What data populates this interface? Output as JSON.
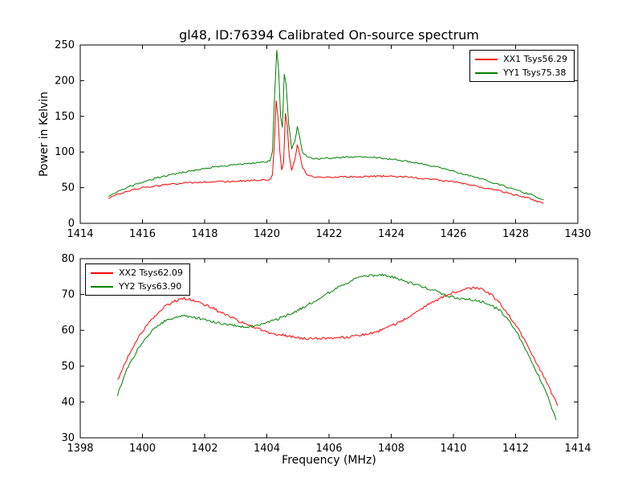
{
  "figure": {
    "title": "gl48, ID:76394 Calibrated On-source spectrum",
    "background": "#ffffff"
  },
  "chart_data": [
    {
      "type": "line",
      "title": "gl48, ID:76394 Calibrated On-source spectrum",
      "xlabel": "",
      "ylabel": "Power in Kelvin",
      "xlim": [
        1414,
        1430
      ],
      "ylim": [
        0,
        250
      ],
      "xticks": [
        1414,
        1416,
        1418,
        1420,
        1422,
        1424,
        1426,
        1428,
        1430
      ],
      "yticks": [
        0,
        50,
        100,
        150,
        200,
        250
      ],
      "grid": false,
      "legend_position": "top-right",
      "sample_step": 0.05,
      "series": [
        {
          "name": "XX1 Tsys56.29",
          "color": "#ff0000",
          "noise": 1.2,
          "points": [
            [
              1414.9,
              35
            ],
            [
              1415.2,
              41
            ],
            [
              1415.6,
              46
            ],
            [
              1416.0,
              50
            ],
            [
              1416.5,
              53
            ],
            [
              1417.0,
              55
            ],
            [
              1417.5,
              57
            ],
            [
              1418.0,
              58
            ],
            [
              1418.5,
              58.5
            ],
            [
              1419.0,
              59
            ],
            [
              1419.5,
              60
            ],
            [
              1420.0,
              61
            ],
            [
              1420.1,
              62
            ],
            [
              1420.18,
              68
            ],
            [
              1420.24,
              110
            ],
            [
              1420.3,
              173
            ],
            [
              1420.36,
              150
            ],
            [
              1420.42,
              100
            ],
            [
              1420.48,
              76
            ],
            [
              1420.54,
              85
            ],
            [
              1420.6,
              155
            ],
            [
              1420.66,
              135
            ],
            [
              1420.72,
              95
            ],
            [
              1420.8,
              75
            ],
            [
              1420.9,
              88
            ],
            [
              1420.98,
              110
            ],
            [
              1421.05,
              100
            ],
            [
              1421.15,
              78
            ],
            [
              1421.3,
              68
            ],
            [
              1421.5,
              65
            ],
            [
              1422.0,
              64.5
            ],
            [
              1422.5,
              65
            ],
            [
              1423.0,
              65.5
            ],
            [
              1423.5,
              66
            ],
            [
              1424.0,
              66
            ],
            [
              1424.5,
              65
            ],
            [
              1425.0,
              63
            ],
            [
              1425.5,
              61
            ],
            [
              1426.0,
              58
            ],
            [
              1426.5,
              54
            ],
            [
              1427.0,
              50
            ],
            [
              1427.5,
              45
            ],
            [
              1428.0,
              40
            ],
            [
              1428.5,
              34
            ],
            [
              1428.9,
              28
            ]
          ]
        },
        {
          "name": "YY1 Tsys75.38",
          "color": "#008000",
          "noise": 1.2,
          "points": [
            [
              1414.9,
              37
            ],
            [
              1415.2,
              44
            ],
            [
              1415.6,
              52
            ],
            [
              1416.0,
              58
            ],
            [
              1416.5,
              64
            ],
            [
              1417.0,
              69
            ],
            [
              1417.5,
              73
            ],
            [
              1418.0,
              77
            ],
            [
              1418.5,
              80
            ],
            [
              1419.0,
              82
            ],
            [
              1419.5,
              84
            ],
            [
              1420.0,
              86
            ],
            [
              1420.1,
              88
            ],
            [
              1420.18,
              100
            ],
            [
              1420.24,
              170
            ],
            [
              1420.32,
              243
            ],
            [
              1420.38,
              215
            ],
            [
              1420.44,
              150
            ],
            [
              1420.5,
              135
            ],
            [
              1420.56,
              210
            ],
            [
              1420.62,
              195
            ],
            [
              1420.7,
              140
            ],
            [
              1420.8,
              105
            ],
            [
              1420.9,
              115
            ],
            [
              1420.98,
              135
            ],
            [
              1421.05,
              122
            ],
            [
              1421.15,
              100
            ],
            [
              1421.3,
              93
            ],
            [
              1421.5,
              90
            ],
            [
              1422.0,
              91
            ],
            [
              1422.5,
              93
            ],
            [
              1423.0,
              93
            ],
            [
              1423.5,
              92
            ],
            [
              1424.0,
              90
            ],
            [
              1424.5,
              87
            ],
            [
              1425.0,
              83
            ],
            [
              1425.5,
              79
            ],
            [
              1426.0,
              73
            ],
            [
              1426.5,
              67
            ],
            [
              1427.0,
              61
            ],
            [
              1427.5,
              54
            ],
            [
              1428.0,
              47
            ],
            [
              1428.5,
              40
            ],
            [
              1428.9,
              33
            ]
          ]
        }
      ]
    },
    {
      "type": "line",
      "title": "",
      "xlabel": "Frequency (MHz)",
      "ylabel": "",
      "xlim": [
        1398,
        1414
      ],
      "ylim": [
        30,
        80
      ],
      "xticks": [
        1398,
        1400,
        1402,
        1404,
        1406,
        1408,
        1410,
        1412,
        1414
      ],
      "yticks": [
        30,
        40,
        50,
        60,
        70,
        80
      ],
      "grid": false,
      "legend_position": "top-left",
      "sample_step": 0.04,
      "series": [
        {
          "name": "XX2 Tsys62.09",
          "color": "#ff0000",
          "noise": 0.35,
          "points": [
            [
              1399.2,
              46
            ],
            [
              1399.5,
              52
            ],
            [
              1399.8,
              57
            ],
            [
              1400.1,
              61
            ],
            [
              1400.4,
              64
            ],
            [
              1400.7,
              66.5
            ],
            [
              1401.0,
              68
            ],
            [
              1401.3,
              69
            ],
            [
              1401.6,
              68.5
            ],
            [
              1401.9,
              67.5
            ],
            [
              1402.2,
              66.5
            ],
            [
              1402.5,
              65
            ],
            [
              1402.8,
              64
            ],
            [
              1403.1,
              62.5
            ],
            [
              1403.4,
              61.5
            ],
            [
              1403.7,
              60.5
            ],
            [
              1404.0,
              59.5
            ],
            [
              1404.3,
              59
            ],
            [
              1404.6,
              58.5
            ],
            [
              1404.9,
              58
            ],
            [
              1405.2,
              57.8
            ],
            [
              1405.5,
              57.7
            ],
            [
              1405.8,
              57.7
            ],
            [
              1406.1,
              57.8
            ],
            [
              1406.4,
              58
            ],
            [
              1406.7,
              58.2
            ],
            [
              1407.0,
              58.6
            ],
            [
              1407.3,
              59
            ],
            [
              1407.6,
              59.8
            ],
            [
              1407.9,
              60.8
            ],
            [
              1408.2,
              62
            ],
            [
              1408.5,
              63.5
            ],
            [
              1408.8,
              65
            ],
            [
              1409.1,
              66.8
            ],
            [
              1409.4,
              68.2
            ],
            [
              1409.7,
              69.5
            ],
            [
              1410.0,
              70.5
            ],
            [
              1410.3,
              71.3
            ],
            [
              1410.6,
              71.8
            ],
            [
              1410.9,
              71.5
            ],
            [
              1411.2,
              70
            ],
            [
              1411.5,
              67.5
            ],
            [
              1411.8,
              64
            ],
            [
              1412.1,
              60
            ],
            [
              1412.4,
              55.5
            ],
            [
              1412.7,
              50.5
            ],
            [
              1413.0,
              45.5
            ],
            [
              1413.35,
              39
            ]
          ]
        },
        {
          "name": "YY2 Tsys63.90",
          "color": "#008000",
          "noise": 0.35,
          "points": [
            [
              1399.2,
              42
            ],
            [
              1399.5,
              49
            ],
            [
              1399.8,
              54
            ],
            [
              1400.1,
              58
            ],
            [
              1400.4,
              60.5
            ],
            [
              1400.7,
              62.5
            ],
            [
              1401.0,
              63.5
            ],
            [
              1401.3,
              64
            ],
            [
              1401.6,
              63.8
            ],
            [
              1401.9,
              63.2
            ],
            [
              1402.2,
              62.5
            ],
            [
              1402.5,
              62
            ],
            [
              1402.8,
              61.5
            ],
            [
              1403.1,
              61.2
            ],
            [
              1403.4,
              61
            ],
            [
              1403.7,
              61.3
            ],
            [
              1404.0,
              62
            ],
            [
              1404.3,
              63
            ],
            [
              1404.6,
              64
            ],
            [
              1404.9,
              65.2
            ],
            [
              1405.2,
              66.5
            ],
            [
              1405.5,
              68
            ],
            [
              1405.8,
              69.5
            ],
            [
              1406.1,
              71
            ],
            [
              1406.4,
              72.5
            ],
            [
              1406.7,
              73.8
            ],
            [
              1407.0,
              74.8
            ],
            [
              1407.3,
              75.3
            ],
            [
              1407.6,
              75.5
            ],
            [
              1407.9,
              75.2
            ],
            [
              1408.2,
              74.5
            ],
            [
              1408.5,
              73.5
            ],
            [
              1408.8,
              72.8
            ],
            [
              1409.1,
              72
            ],
            [
              1409.4,
              71
            ],
            [
              1409.7,
              70
            ],
            [
              1410.0,
              69.2
            ],
            [
              1410.3,
              68.8
            ],
            [
              1410.6,
              68.5
            ],
            [
              1410.9,
              68
            ],
            [
              1411.2,
              67
            ],
            [
              1411.5,
              65.5
            ],
            [
              1411.8,
              62.5
            ],
            [
              1412.1,
              58.5
            ],
            [
              1412.4,
              53.5
            ],
            [
              1412.7,
              48
            ],
            [
              1413.0,
              42.5
            ],
            [
              1413.3,
              35
            ]
          ]
        }
      ]
    }
  ]
}
